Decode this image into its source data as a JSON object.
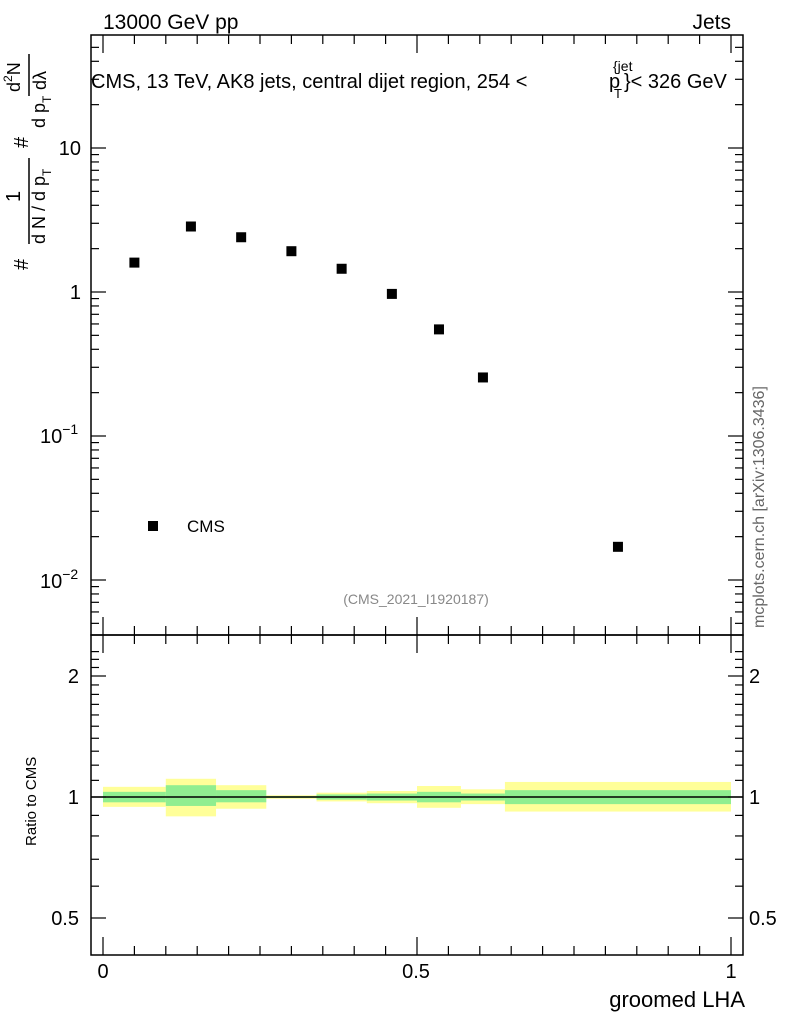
{
  "header": {
    "energy_label": "13000 GeV pp",
    "category_label": "Jets",
    "side_label": "mcplots.cern.ch [arXiv:1306.3436]",
    "analysis_id": "(CMS_2021_I1920187)"
  },
  "colors": {
    "marker": "#000000",
    "band_inner": "#90ee90",
    "band_outer": "#ffff99",
    "analysis_text": "#888888",
    "side_text": "#666666"
  },
  "chart_data": [
    {
      "type": "scatter",
      "title": "CMS, 13 TeV, AK8 jets, central dijet region, 254 < p_T^{jet} < 326 GeV",
      "title_parts": [
        "CMS, 13 TeV, AK8 jets, central dijet region, 254 <",
        "p",
        "T",
        "{jet",
        "}< 326 GeV"
      ],
      "ylabel_parts": [
        "#",
        "1",
        "d N / d p",
        "T",
        "#",
        "d p",
        "T",
        "d",
        "2",
        "N",
        "dλ"
      ],
      "yscale": "log",
      "ylim": [
        0.004,
        60
      ],
      "xlim": [
        -0.02,
        1.02
      ],
      "yticks": [
        {
          "value": 0.01,
          "base": "10",
          "exp": "−2"
        },
        {
          "value": 0.1,
          "base": "10",
          "exp": "−1"
        },
        {
          "value": 1,
          "base": "1",
          "exp": ""
        },
        {
          "value": 10,
          "base": "10",
          "exp": ""
        }
      ],
      "legend": {
        "label": "CMS",
        "placement": "bottom-left"
      },
      "series": [
        {
          "name": "CMS",
          "x": [
            0.05,
            0.14,
            0.22,
            0.3,
            0.38,
            0.46,
            0.535,
            0.605,
            0.82
          ],
          "y": [
            1.6,
            2.85,
            2.4,
            1.92,
            1.45,
            0.97,
            0.55,
            0.255,
            0.017
          ]
        }
      ]
    },
    {
      "type": "area",
      "ylabel": "Ratio to CMS",
      "xlabel": "groomed LHA",
      "xlim": [
        -0.02,
        1.02
      ],
      "ylim": [
        0.4,
        2.4
      ],
      "yscale": "log",
      "xticks": [
        {
          "value": 0,
          "label": "0"
        },
        {
          "value": 0.5,
          "label": "0.5"
        },
        {
          "value": 1,
          "label": "1"
        }
      ],
      "yticks": [
        {
          "value": 0.5,
          "label": "0.5"
        },
        {
          "value": 1,
          "label": "1"
        },
        {
          "value": 2,
          "label": "2"
        }
      ],
      "reference_line": 1.0,
      "bins": [
        {
          "lo": 0.0,
          "hi": 0.1,
          "inner": [
            0.97,
            1.03
          ],
          "outer": [
            0.945,
            1.06
          ]
        },
        {
          "lo": 0.1,
          "hi": 0.18,
          "inner": [
            0.95,
            1.07
          ],
          "outer": [
            0.895,
            1.11
          ]
        },
        {
          "lo": 0.18,
          "hi": 0.26,
          "inner": [
            0.97,
            1.04
          ],
          "outer": [
            0.935,
            1.07
          ]
        },
        {
          "lo": 0.26,
          "hi": 0.34,
          "inner": [
            0.995,
            1.005
          ],
          "outer": [
            0.99,
            1.01
          ]
        },
        {
          "lo": 0.34,
          "hi": 0.42,
          "inner": [
            0.985,
            1.015
          ],
          "outer": [
            0.975,
            1.025
          ]
        },
        {
          "lo": 0.42,
          "hi": 0.5,
          "inner": [
            0.98,
            1.02
          ],
          "outer": [
            0.965,
            1.035
          ]
        },
        {
          "lo": 0.5,
          "hi": 0.57,
          "inner": [
            0.97,
            1.03
          ],
          "outer": [
            0.94,
            1.065
          ]
        },
        {
          "lo": 0.57,
          "hi": 0.64,
          "inner": [
            0.98,
            1.02
          ],
          "outer": [
            0.96,
            1.045
          ]
        },
        {
          "lo": 0.64,
          "hi": 1.0,
          "inner": [
            0.96,
            1.04
          ],
          "outer": [
            0.92,
            1.09
          ]
        }
      ]
    }
  ]
}
